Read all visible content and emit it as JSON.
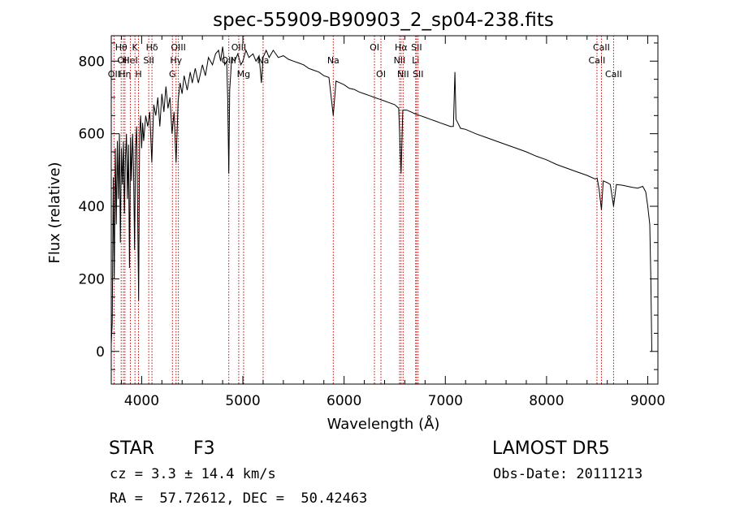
{
  "chart_data": {
    "type": "line",
    "title": "spec-55909-B90903_2_sp04-238.fits",
    "xlabel": "Wavelength (Å)",
    "ylabel": "Flux (relative)",
    "xlim": [
      3700,
      9100
    ],
    "ylim": [
      -90,
      870
    ],
    "xticks": [
      4000,
      5000,
      6000,
      7000,
      8000,
      9000
    ],
    "yticks": [
      0,
      200,
      400,
      600,
      800
    ],
    "grid": false,
    "series": [
      {
        "points": [
          [
            3700,
            20
          ],
          [
            3710,
            80
          ],
          [
            3720,
            480
          ],
          [
            3730,
            200
          ],
          [
            3740,
            560
          ],
          [
            3750,
            350
          ],
          [
            3760,
            580
          ],
          [
            3770,
            420
          ],
          [
            3780,
            600
          ],
          [
            3790,
            300
          ],
          [
            3800,
            560
          ],
          [
            3810,
            460
          ],
          [
            3820,
            580
          ],
          [
            3830,
            380
          ],
          [
            3840,
            530
          ],
          [
            3850,
            600
          ],
          [
            3860,
            420
          ],
          [
            3870,
            570
          ],
          [
            3880,
            230
          ],
          [
            3890,
            590
          ],
          [
            3900,
            470
          ],
          [
            3910,
            600
          ],
          [
            3920,
            510
          ],
          [
            3930,
            280
          ],
          [
            3940,
            560
          ],
          [
            3950,
            620
          ],
          [
            3960,
            400
          ],
          [
            3970,
            140
          ],
          [
            3980,
            600
          ],
          [
            3990,
            650
          ],
          [
            4000,
            560
          ],
          [
            4010,
            630
          ],
          [
            4020,
            580
          ],
          [
            4040,
            650
          ],
          [
            4060,
            620
          ],
          [
            4080,
            660
          ],
          [
            4100,
            520
          ],
          [
            4120,
            680
          ],
          [
            4140,
            650
          ],
          [
            4160,
            700
          ],
          [
            4180,
            620
          ],
          [
            4200,
            710
          ],
          [
            4220,
            660
          ],
          [
            4240,
            730
          ],
          [
            4260,
            670
          ],
          [
            4280,
            700
          ],
          [
            4300,
            600
          ],
          [
            4320,
            660
          ],
          [
            4340,
            520
          ],
          [
            4360,
            690
          ],
          [
            4380,
            740
          ],
          [
            4400,
            710
          ],
          [
            4420,
            760
          ],
          [
            4450,
            720
          ],
          [
            4480,
            770
          ],
          [
            4500,
            740
          ],
          [
            4530,
            780
          ],
          [
            4560,
            740
          ],
          [
            4600,
            790
          ],
          [
            4630,
            760
          ],
          [
            4660,
            810
          ],
          [
            4700,
            790
          ],
          [
            4730,
            820
          ],
          [
            4760,
            830
          ],
          [
            4780,
            800
          ],
          [
            4800,
            840
          ],
          [
            4820,
            790
          ],
          [
            4840,
            800
          ],
          [
            4850,
            700
          ],
          [
            4861,
            490
          ],
          [
            4870,
            720
          ],
          [
            4890,
            810
          ],
          [
            4920,
            800
          ],
          [
            4950,
            820
          ],
          [
            4980,
            790
          ],
          [
            5000,
            800
          ],
          [
            5030,
            830
          ],
          [
            5060,
            810
          ],
          [
            5100,
            820
          ],
          [
            5130,
            800
          ],
          [
            5160,
            815
          ],
          [
            5183,
            740
          ],
          [
            5200,
            810
          ],
          [
            5230,
            830
          ],
          [
            5260,
            810
          ],
          [
            5300,
            830
          ],
          [
            5350,
            810
          ],
          [
            5400,
            815
          ],
          [
            5450,
            805
          ],
          [
            5500,
            800
          ],
          [
            5550,
            795
          ],
          [
            5600,
            790
          ],
          [
            5650,
            780
          ],
          [
            5700,
            775
          ],
          [
            5750,
            770
          ],
          [
            5800,
            760
          ],
          [
            5850,
            755
          ],
          [
            5893,
            650
          ],
          [
            5920,
            745
          ],
          [
            5960,
            740
          ],
          [
            6000,
            735
          ],
          [
            6050,
            725
          ],
          [
            6100,
            722
          ],
          [
            6150,
            715
          ],
          [
            6200,
            710
          ],
          [
            6250,
            705
          ],
          [
            6300,
            700
          ],
          [
            6350,
            695
          ],
          [
            6400,
            690
          ],
          [
            6450,
            685
          ],
          [
            6500,
            680
          ],
          [
            6540,
            670
          ],
          [
            6563,
            490
          ],
          [
            6580,
            665
          ],
          [
            6620,
            665
          ],
          [
            6660,
            660
          ],
          [
            6700,
            655
          ],
          [
            6750,
            650
          ],
          [
            6800,
            645
          ],
          [
            6850,
            640
          ],
          [
            6900,
            635
          ],
          [
            6950,
            630
          ],
          [
            7000,
            625
          ],
          [
            7050,
            620
          ],
          [
            7080,
            620
          ],
          [
            7095,
            770
          ],
          [
            7105,
            640
          ],
          [
            7150,
            615
          ],
          [
            7200,
            612
          ],
          [
            7300,
            600
          ],
          [
            7400,
            590
          ],
          [
            7500,
            580
          ],
          [
            7600,
            570
          ],
          [
            7700,
            560
          ],
          [
            7800,
            550
          ],
          [
            7900,
            538
          ],
          [
            8000,
            528
          ],
          [
            8100,
            515
          ],
          [
            8200,
            505
          ],
          [
            8300,
            495
          ],
          [
            8400,
            485
          ],
          [
            8480,
            475
          ],
          [
            8500,
            478
          ],
          [
            8520,
            445
          ],
          [
            8542,
            390
          ],
          [
            8560,
            470
          ],
          [
            8600,
            465
          ],
          [
            8630,
            460
          ],
          [
            8662,
            400
          ],
          [
            8690,
            460
          ],
          [
            8750,
            458
          ],
          [
            8800,
            455
          ],
          [
            8850,
            452
          ],
          [
            8900,
            450
          ],
          [
            8950,
            455
          ],
          [
            8980,
            440
          ],
          [
            9000,
            400
          ],
          [
            9020,
            350
          ],
          [
            9030,
            200
          ],
          [
            9040,
            0
          ]
        ]
      }
    ],
    "lines": [
      {
        "x": 3727,
        "labels": [
          "OII"
        ],
        "row": 3
      },
      {
        "x": 3798,
        "labels": [
          "Hθ"
        ],
        "row": 1
      },
      {
        "x": 3820,
        "labels": [
          "OII"
        ],
        "row": 2
      },
      {
        "x": 3835,
        "labels": [
          "Hη"
        ],
        "row": 3
      },
      {
        "x": 3889,
        "labels": [
          "HeI"
        ],
        "row": 2
      },
      {
        "x": 3934,
        "labels": [
          "K"
        ],
        "row": 1
      },
      {
        "x": 3969,
        "labels": [
          "H"
        ],
        "row": 3
      },
      {
        "x": 4070,
        "labels": [
          "SII"
        ],
        "row": 2
      },
      {
        "x": 4102,
        "labels": [
          "Hδ"
        ],
        "row": 1
      },
      {
        "x": 4304,
        "labels": [
          "G"
        ],
        "row": 3
      },
      {
        "x": 4340,
        "labels": [
          "Hγ"
        ],
        "row": 2
      },
      {
        "x": 4363,
        "labels": [
          "OIII"
        ],
        "row": 1
      },
      {
        "x": 4861,
        "labels": [
          "OIII"
        ],
        "row": 2
      },
      {
        "x": 4959,
        "labels": [
          "OIII"
        ],
        "row": 1
      },
      {
        "x": 5007,
        "labels": [
          "Mg"
        ],
        "row": 3
      },
      {
        "x": 5200,
        "labels": [
          "Na"
        ],
        "row": 2
      },
      {
        "x": 5893,
        "labels": [
          "Na"
        ],
        "row": 2
      },
      {
        "x": 6300,
        "labels": [
          "OI"
        ],
        "row": 1
      },
      {
        "x": 6364,
        "labels": [
          "OI"
        ],
        "row": 3
      },
      {
        "x": 6548,
        "labels": [
          "NII"
        ],
        "row": 2
      },
      {
        "x": 6563,
        "labels": [
          "Hα"
        ],
        "row": 1
      },
      {
        "x": 6583,
        "labels": [
          "NII"
        ],
        "row": 3
      },
      {
        "x": 6707,
        "labels": [
          "Li"
        ],
        "row": 2
      },
      {
        "x": 6716,
        "labels": [
          "SII"
        ],
        "row": 1
      },
      {
        "x": 6731,
        "labels": [
          "SII"
        ],
        "row": 3
      },
      {
        "x": 8498,
        "labels": [
          "CaII"
        ],
        "row": 2
      },
      {
        "x": 8542,
        "labels": [
          "CaII"
        ],
        "row": 1
      },
      {
        "x": 8662,
        "labels": [
          "CaII"
        ],
        "row": 3
      }
    ],
    "line_color": "#cc0000",
    "curve_color": "#000000"
  },
  "info": {
    "object_class": "STAR",
    "subclass": "F3",
    "survey": "LAMOST DR5",
    "cz": "cz = 3.3 ± 14.4 km/s",
    "obs_date": "Obs-Date: 20111213",
    "coords": "RA =  57.72612, DEC =  50.42463"
  }
}
